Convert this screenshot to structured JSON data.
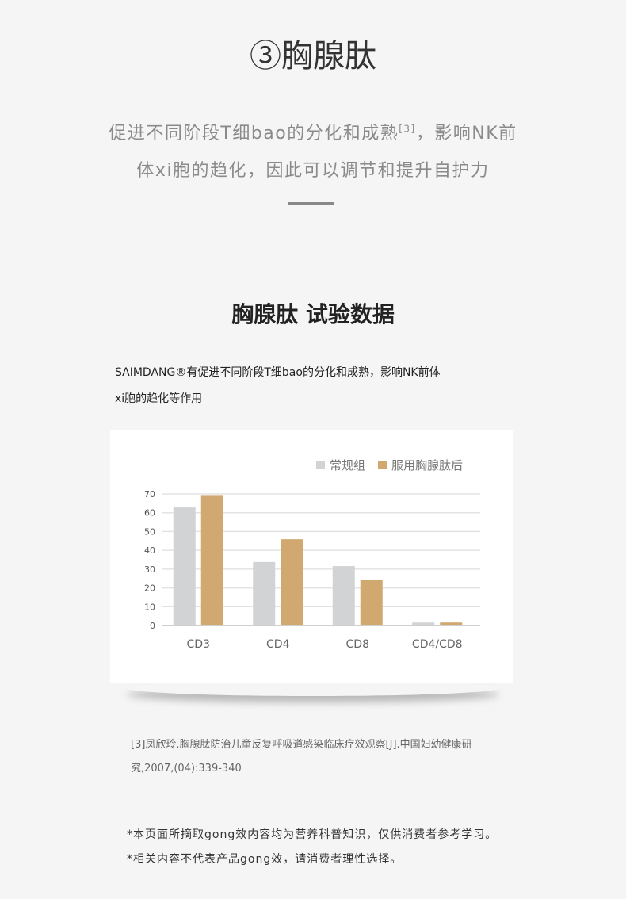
{
  "header": {
    "title": "③胸腺肽",
    "intro_line1": "促进不同阶段T细bao的分化和成熟",
    "intro_ref": "[3]",
    "intro_line1_rest": "，影响NK前",
    "intro_line2": "体xi胞的趋化，因此可以调节和提升自护力"
  },
  "section": {
    "title": "胸腺肽 试验数据",
    "desc_line1": "SAIMDANG®有促进不同阶段T细bao的分化和成熟，影响NK前体",
    "desc_line2": "xi胞的趋化等作用"
  },
  "chart_data": {
    "type": "bar",
    "categories": [
      "CD3",
      "CD4",
      "CD8",
      "CD4/CD8"
    ],
    "series": [
      {
        "name": "常规组",
        "values": [
          62.8,
          33.8,
          31.6,
          1.6
        ],
        "color": "#d2d3d5"
      },
      {
        "name": "服用胸腺肽后",
        "values": [
          69,
          45.9,
          24.4,
          1.6
        ],
        "color": "#d0a870"
      }
    ],
    "ylim": [
      0,
      70
    ],
    "yticks": [
      0,
      10,
      20,
      30,
      40,
      50,
      60,
      70
    ],
    "grid": true,
    "legend": "top-right"
  },
  "reference": {
    "line1": "[3]凤欣玲.胸腺肽防治儿童反复呼吸道感染临床疗效观察[J].中国妇幼健康研",
    "line2": "究,2007,(04):339-340"
  },
  "notes": [
    "*本页面所摘取gong效内容均为营养科普知识，仅供消费者参考学习。",
    "*相关内容不代表产品gong效，请消费者理性选择。"
  ]
}
